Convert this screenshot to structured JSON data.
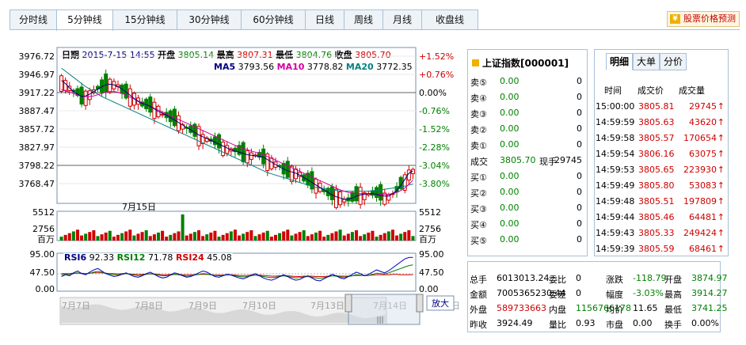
{
  "tabs": [
    "分时线",
    "5分钟线",
    "15分钟线",
    "30分钟线",
    "60分钟线",
    "日线",
    "周线",
    "月线",
    "收盘线"
  ],
  "predict_link": "股票价格预测",
  "predict_icon": "chart-icon",
  "header": {
    "date_label": "日期",
    "date_value": "2015-7-15  14:55",
    "open_label": "开盘",
    "open_value": "3805.14",
    "high_label": "最高",
    "high_value": "3807.31",
    "low_label": "最低",
    "low_value": "3804.76",
    "close_label": "收盘",
    "close_value": "3805.70"
  },
  "ma": {
    "ma5_label": "MA5",
    "ma5_value": "3793.56",
    "ma10_label": "MA10",
    "ma10_value": "3778.82",
    "ma20_label": "MA20",
    "ma20_value": "3772.35"
  },
  "price_axis": {
    "left": [
      "3976.72",
      "3946.97",
      "3917.22",
      "3887.47",
      "3857.72",
      "3827.97",
      "3798.22",
      "3768.47"
    ],
    "right": [
      "+1.52%",
      "+0.76%",
      "0.00%",
      "-0.76%",
      "-1.52%",
      "-2.28%",
      "-3.04%",
      "-3.80%"
    ]
  },
  "date_marker": "7月15日",
  "volume_axis": {
    "left": [
      "5512",
      "2756",
      "百万"
    ],
    "right": [
      "5512",
      "2756",
      "百万"
    ]
  },
  "rsi": {
    "rsi6_label": "RSI6",
    "rsi6_value": "92.33",
    "rsi12_label": "RSI12",
    "rsi12_value": "71.78",
    "rsi24_label": "RSI24",
    "rsi24_value": "45.08"
  },
  "rsi_axis": {
    "left": [
      "95.00",
      "47.50",
      "0.00"
    ],
    "right": [
      "95.00",
      "47.50",
      "0.00"
    ]
  },
  "navigator": {
    "dates": [
      "7月7日",
      "7月8日",
      "7月9日",
      "7月10日",
      "7月13日",
      "7月14日",
      "7月15日"
    ],
    "zoom_label": "放大",
    "grip": "|||"
  },
  "quote": {
    "title": "上证指数[000001]",
    "icon": "square-icon",
    "sells": [
      {
        "label": "卖⑤",
        "price": "0.00",
        "vol": "0"
      },
      {
        "label": "卖④",
        "price": "0.00",
        "vol": "0"
      },
      {
        "label": "卖③",
        "price": "0.00",
        "vol": "0"
      },
      {
        "label": "卖②",
        "price": "0.00",
        "vol": "0"
      },
      {
        "label": "卖①",
        "price": "0.00",
        "vol": "0"
      }
    ],
    "deal": {
      "label": "成交",
      "price": "3805.70",
      "hand_label": "现手",
      "hand": "29745"
    },
    "buys": [
      {
        "label": "买①",
        "price": "0.00",
        "vol": "0"
      },
      {
        "label": "买②",
        "price": "0.00",
        "vol": "0"
      },
      {
        "label": "买③",
        "price": "0.00",
        "vol": "0"
      },
      {
        "label": "买④",
        "price": "0.00",
        "vol": "0"
      },
      {
        "label": "买⑤",
        "price": "0.00",
        "vol": "0"
      }
    ]
  },
  "ticks": {
    "tabs": [
      "明细",
      "大单",
      "分价"
    ],
    "headers": [
      "时间",
      "成交价",
      "成交量"
    ],
    "rows": [
      {
        "time": "15:00:00",
        "price": "3805.81",
        "vol": "29745",
        "arrow": "↑"
      },
      {
        "time": "14:59:59",
        "price": "3805.63",
        "vol": "43620",
        "arrow": "↑"
      },
      {
        "time": "14:59:58",
        "price": "3805.57",
        "vol": "170654",
        "arrow": "↑"
      },
      {
        "time": "14:59:54",
        "price": "3806.16",
        "vol": "63075",
        "arrow": "↑"
      },
      {
        "time": "14:59:53",
        "price": "3805.65",
        "vol": "223930",
        "arrow": "↑"
      },
      {
        "time": "14:59:49",
        "price": "3805.80",
        "vol": "53083",
        "arrow": "↑"
      },
      {
        "time": "14:59:48",
        "price": "3805.51",
        "vol": "197809",
        "arrow": "↑"
      },
      {
        "time": "14:59:44",
        "price": "3805.46",
        "vol": "64481",
        "arrow": "↑"
      },
      {
        "time": "14:59:43",
        "price": "3805.33",
        "vol": "249424",
        "arrow": "↑"
      },
      {
        "time": "14:59:39",
        "price": "3805.59",
        "vol": "68461",
        "arrow": "↑"
      }
    ]
  },
  "stats": [
    [
      {
        "t": "总手",
        "c": ""
      },
      {
        "t": "6013013.24",
        "c": ""
      },
      {
        "t": "委比",
        "c": ""
      },
      {
        "t": "0",
        "c": ""
      },
      {
        "t": "涨跌",
        "c": ""
      },
      {
        "t": "-118.79",
        "c": "green"
      },
      {
        "t": "开盘",
        "c": ""
      },
      {
        "t": "3874.97",
        "c": "green"
      }
    ],
    [
      {
        "t": "金额",
        "c": ""
      },
      {
        "t": "7005365230.44",
        "c": ""
      },
      {
        "t": "委差",
        "c": ""
      },
      {
        "t": "0",
        "c": ""
      },
      {
        "t": "幅度",
        "c": ""
      },
      {
        "t": "-3.03%",
        "c": "green"
      },
      {
        "t": "最高",
        "c": ""
      },
      {
        "t": "3914.27",
        "c": "green"
      }
    ],
    [
      {
        "t": "外盘",
        "c": ""
      },
      {
        "t": "589733663",
        "c": "red"
      },
      {
        "t": "内盘",
        "c": ""
      },
      {
        "t": "1156766178",
        "c": "green"
      },
      {
        "t": "均价",
        "c": ""
      },
      {
        "t": "11.65",
        "c": ""
      },
      {
        "t": "最低",
        "c": ""
      },
      {
        "t": "3741.25",
        "c": "green"
      }
    ],
    [
      {
        "t": "昨收",
        "c": ""
      },
      {
        "t": "3924.49",
        "c": ""
      },
      {
        "t": "量比",
        "c": ""
      },
      {
        "t": "0.93",
        "c": ""
      },
      {
        "t": "市盘",
        "c": ""
      },
      {
        "t": "0.00",
        "c": ""
      },
      {
        "t": "换手",
        "c": ""
      },
      {
        "t": "0.00%",
        "c": ""
      }
    ]
  ],
  "colors": {
    "up": "#d00000",
    "down": "#008000",
    "ma5": "#000080",
    "ma10": "#d000a0",
    "ma20": "#008080",
    "border": "#a8c0d8",
    "accent": "#c00000"
  },
  "chart_data": {
    "type": "candlestick",
    "ylim": [
      3741.25,
      3976.72
    ],
    "ma5": [
      3940,
      3935,
      3928,
      3922,
      3918,
      3914,
      3915,
      3918,
      3922,
      3926,
      3930,
      3933,
      3934,
      3933,
      3930,
      3926,
      3921,
      3916,
      3911,
      3906,
      3903,
      3901,
      3898,
      3894,
      3890,
      3887,
      3884,
      3880,
      3876,
      3872,
      3868,
      3864,
      3860,
      3856,
      3852,
      3849,
      3846,
      3843,
      3840,
      3837,
      3834,
      3831,
      3828,
      3826,
      3824,
      3822,
      3820,
      3819,
      3818,
      3817,
      3816,
      3812,
      3808,
      3804,
      3800,
      3797,
      3794,
      3792,
      3790,
      3787,
      3783,
      3779,
      3775,
      3771,
      3767,
      3763,
      3759,
      3755,
      3752,
      3750,
      3748,
      3748,
      3750,
      3753,
      3755,
      3756,
      3757,
      3757,
      3756,
      3754,
      3753,
      3753,
      3757,
      3762,
      3770,
      3780,
      3790,
      3793.56
    ],
    "ma10": [
      3925,
      3923,
      3921,
      3919,
      3917,
      3915,
      3914,
      3914,
      3915,
      3917,
      3919,
      3921,
      3922,
      3922,
      3921,
      3919,
      3916,
      3913,
      3910,
      3907,
      3904,
      3901,
      3898,
      3895,
      3892,
      3889,
      3886,
      3883,
      3880,
      3877,
      3874,
      3871,
      3868,
      3865,
      3862,
      3859,
      3856,
      3853,
      3850,
      3847,
      3844,
      3841,
      3838,
      3835,
      3832,
      3830,
      3828,
      3826,
      3824,
      3822,
      3820,
      3817,
      3814,
      3811,
      3808,
      3805,
      3802,
      3799,
      3796,
      3793,
      3790,
      3787,
      3784,
      3781,
      3778,
      3775,
      3772,
      3769,
      3766,
      3763,
      3761,
      3759,
      3758,
      3757,
      3757,
      3757,
      3757,
      3757,
      3757,
      3756,
      3756,
      3756,
      3757,
      3759,
      3762,
      3766,
      3772,
      3778.82
    ],
    "ma20": [
      3960,
      3955,
      3950,
      3945,
      3940,
      3935,
      3930,
      3926,
      3922,
      3918,
      3914,
      3911,
      3908,
      3905,
      3902,
      3899,
      3896,
      3893,
      3890,
      3887,
      3884,
      3881,
      3878,
      3875,
      3872,
      3869,
      3866,
      3863,
      3860,
      3857,
      3854,
      3851,
      3848,
      3845,
      3842,
      3839,
      3836,
      3833,
      3830,
      3827,
      3824,
      3821,
      3818,
      3815,
      3812,
      3809,
      3806,
      3803,
      3800,
      3797,
      3794,
      3791,
      3789,
      3787,
      3785,
      3783,
      3781,
      3779,
      3777,
      3775,
      3773,
      3771,
      3769,
      3767,
      3766,
      3765,
      3764,
      3763,
      3762,
      3761,
      3761,
      3761,
      3761,
      3761,
      3761,
      3761,
      3761,
      3762,
      3762,
      3763,
      3764,
      3765,
      3766,
      3767,
      3768,
      3769,
      3771,
      3772.35
    ],
    "rsi6": [
      40,
      45,
      42,
      50,
      55,
      48,
      45,
      52,
      58,
      62,
      55,
      48,
      44,
      40,
      42,
      46,
      50,
      45,
      40,
      38,
      42,
      48,
      52,
      46,
      40,
      36,
      38,
      44,
      50,
      47,
      42,
      38,
      40,
      45,
      50,
      55,
      52,
      46,
      40,
      38,
      42,
      46,
      44,
      40,
      36,
      34,
      38,
      44,
      48,
      42,
      36,
      32,
      30,
      34,
      40,
      45,
      40,
      34,
      30,
      32,
      38,
      42,
      36,
      30,
      28,
      34,
      40,
      46,
      42,
      36,
      34,
      40,
      46,
      52,
      48,
      42,
      46,
      52,
      58,
      54,
      50,
      56,
      64,
      72,
      80,
      88,
      92,
      92.33
    ],
    "rsi12": [
      45,
      46,
      45,
      48,
      50,
      48,
      47,
      49,
      52,
      54,
      52,
      49,
      47,
      45,
      45,
      46,
      48,
      46,
      44,
      42,
      44,
      46,
      48,
      46,
      44,
      42,
      42,
      44,
      46,
      45,
      43,
      41,
      42,
      44,
      46,
      48,
      47,
      45,
      43,
      42,
      43,
      45,
      44,
      42,
      40,
      39,
      40,
      42,
      44,
      42,
      40,
      38,
      37,
      38,
      40,
      42,
      40,
      38,
      36,
      37,
      39,
      40,
      38,
      36,
      35,
      37,
      39,
      42,
      41,
      39,
      38,
      40,
      42,
      45,
      44,
      42,
      43,
      46,
      49,
      48,
      47,
      50,
      54,
      58,
      62,
      66,
      70,
      71.78
    ],
    "rsi24": [
      48,
      48,
      48,
      49,
      49,
      49,
      48,
      49,
      50,
      50,
      50,
      49,
      48,
      48,
      47,
      48,
      48,
      47,
      46,
      46,
      46,
      47,
      47,
      47,
      46,
      45,
      45,
      46,
      46,
      46,
      45,
      45,
      45,
      45,
      46,
      46,
      46,
      45,
      44,
      44,
      44,
      45,
      45,
      44,
      43,
      43,
      43,
      44,
      44,
      44,
      43,
      42,
      41,
      41,
      42,
      42,
      42,
      41,
      40,
      40,
      41,
      41,
      41,
      40,
      40,
      40,
      41,
      42,
      42,
      41,
      41,
      41,
      42,
      43,
      43,
      43,
      43,
      44,
      45,
      45,
      45,
      45,
      46,
      46,
      45,
      45,
      45,
      45.08
    ]
  }
}
